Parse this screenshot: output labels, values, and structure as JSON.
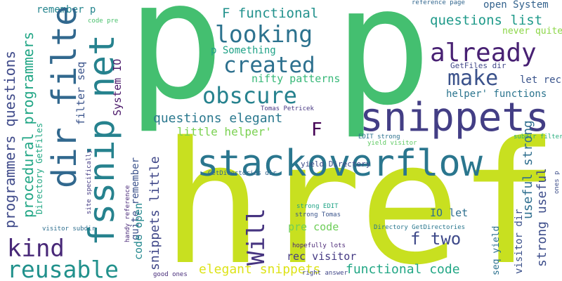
{
  "words": [
    {
      "text": "p",
      "color": "#44bf70"
    },
    {
      "text": "p",
      "color": "#44bf70"
    },
    {
      "text": "href",
      "color": "#c8e020"
    },
    {
      "text": "snippets",
      "color": "#433e85"
    },
    {
      "text": "stackoverflow",
      "color": "#2a768e"
    },
    {
      "text": "fssnip net",
      "color": "#26828e"
    },
    {
      "text": "dir filter",
      "color": "#31688e"
    },
    {
      "text": "reusable",
      "color": "#21918c"
    },
    {
      "text": "kind",
      "color": "#482878"
    },
    {
      "text": "looking",
      "color": "#2c728e"
    },
    {
      "text": "already",
      "color": "#482173"
    },
    {
      "text": "created",
      "color": "#2d708e"
    },
    {
      "text": "obscure",
      "color": "#26828e"
    },
    {
      "text": "make",
      "color": "#3b528b"
    },
    {
      "text": "F",
      "color": "#440154"
    },
    {
      "text": "Will",
      "color": "#463480"
    },
    {
      "text": "f two",
      "color": "#3e4989"
    },
    {
      "text": "F functional",
      "color": "#21918c"
    },
    {
      "text": "questions list",
      "color": "#1f9a8a"
    },
    {
      "text": "questions elegant",
      "color": "#2a788e"
    },
    {
      "text": "functional code",
      "color": "#22a785"
    },
    {
      "text": "elegant snippets",
      "color": "#dde318"
    },
    {
      "text": "programmers questions",
      "color": "#3e4989"
    },
    {
      "text": "procedural programmers",
      "color": "#21a685"
    },
    {
      "text": "little helper'",
      "color": "#7ad151"
    },
    {
      "text": "nifty patterns",
      "color": "#37b878"
    },
    {
      "text": "p Something",
      "color": "#1fa287"
    },
    {
      "text": "remember p",
      "color": "#25858e"
    },
    {
      "text": "open System",
      "color": "#33628d"
    },
    {
      "text": "never quite",
      "color": "#8bd646"
    },
    {
      "text": "let rec",
      "color": "#3a548c"
    },
    {
      "text": "helper' functions",
      "color": "#2b748e"
    },
    {
      "text": "GetFiles dir",
      "color": "#3f4788"
    },
    {
      "text": "code pre",
      "color": "#4ac16d"
    },
    {
      "text": "reference page",
      "color": "#31668e"
    },
    {
      "text": "Tomas Petricek",
      "color": "#453581"
    },
    {
      "text": "IO let",
      "color": "#2e6f8e"
    },
    {
      "text": "pre code",
      "color": "#6ece58"
    },
    {
      "text": "rec visitor",
      "color": "#443983"
    },
    {
      "text": "strong useful",
      "color": "#3d4d8a"
    },
    {
      "text": "useful strong",
      "color": "#2e6e8e"
    },
    {
      "text": "visitor dir",
      "color": "#3b518b"
    },
    {
      "text": "seq yield",
      "color": "#2c718e"
    },
    {
      "text": "yield Directory",
      "color": "#3e4c8a"
    },
    {
      "text": "EDIT strong",
      "color": "#2c728e"
    },
    {
      "text": "yield visitor",
      "color": "#5ec962"
    },
    {
      "text": "subdir filter",
      "color": "#29af7f"
    },
    {
      "text": "ones p",
      "color": "#3d4e8a"
    },
    {
      "text": "GetDirectories dir",
      "color": "#32658e"
    },
    {
      "text": "Directory GetDirectories",
      "color": "#2a778e"
    },
    {
      "text": "hopefully lots",
      "color": "#482475"
    },
    {
      "text": "strong EDIT",
      "color": "#20a486"
    },
    {
      "text": "strong Tomas",
      "color": "#3a548c"
    },
    {
      "text": "right answer",
      "color": "#404688"
    },
    {
      "text": "good ones",
      "color": "#472c7a"
    },
    {
      "text": "handy reference",
      "color": "#482878"
    },
    {
      "text": "site specifically",
      "color": "#443b84"
    },
    {
      "text": "visitor subdir",
      "color": "#2e6e8e"
    },
    {
      "text": "Directory GetFiles",
      "color": "#22a884"
    },
    {
      "text": "quite remember",
      "color": "#3b528b"
    },
    {
      "text": "code open",
      "color": "#23888e"
    },
    {
      "text": "snippets little",
      "color": "#3f4788"
    },
    {
      "text": "System IO",
      "color": "#481467"
    },
    {
      "text": "filter seq",
      "color": "#3a538b"
    }
  ]
}
